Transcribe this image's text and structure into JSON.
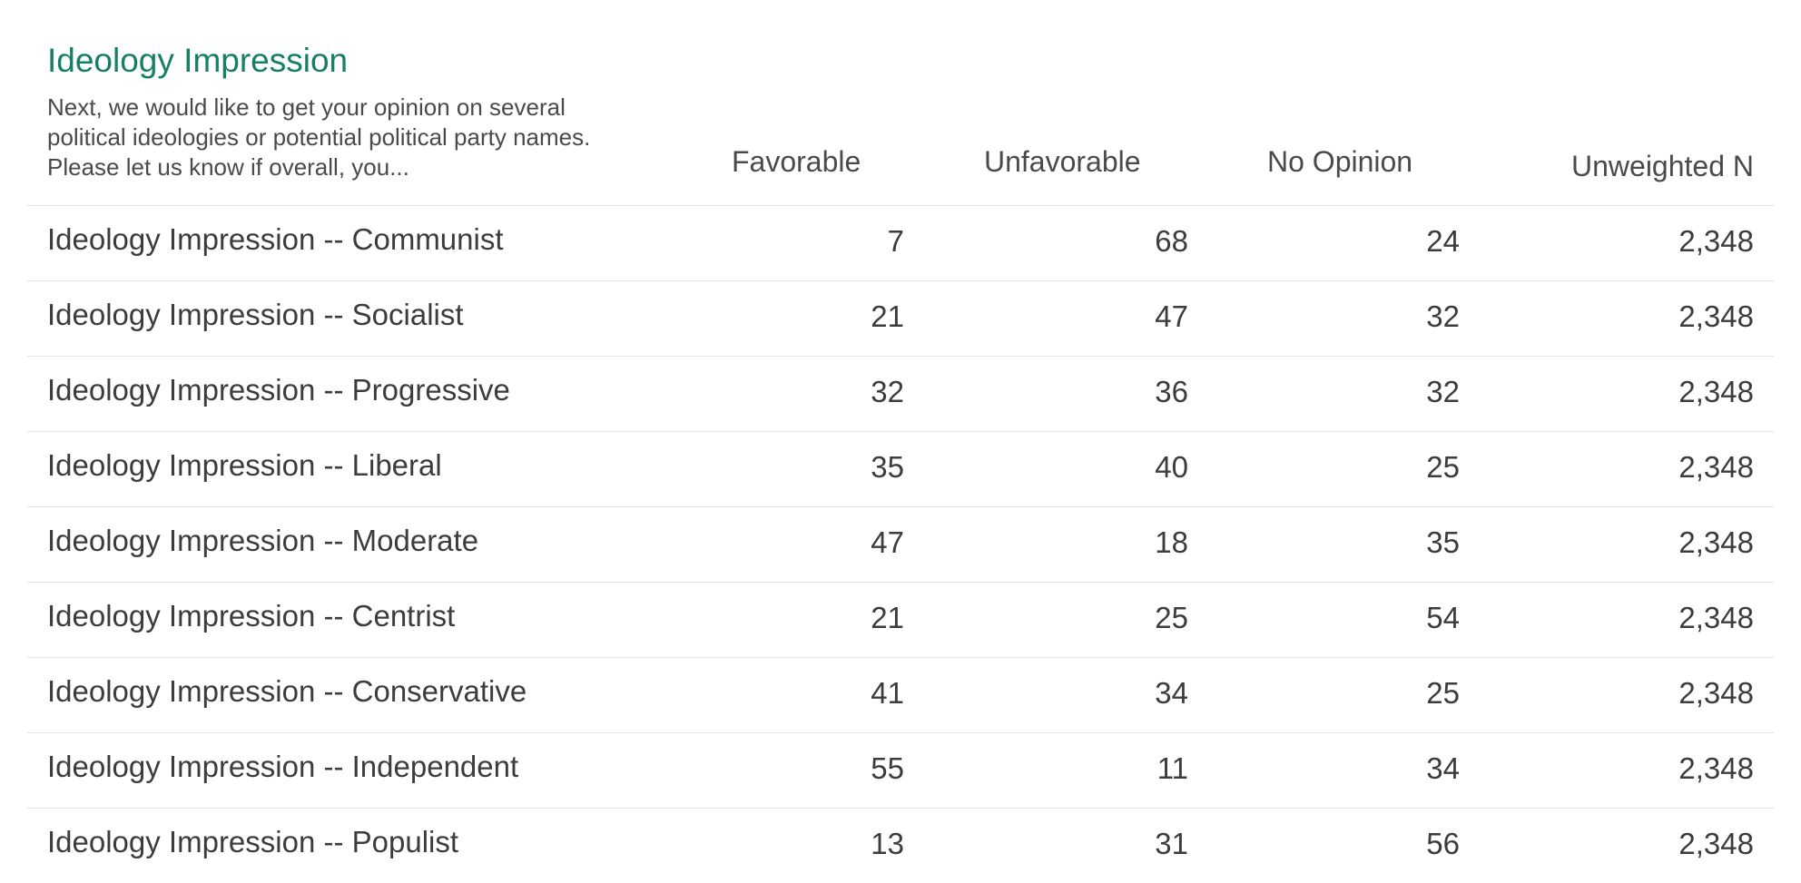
{
  "chart_data": {
    "type": "table",
    "title": "Ideology Impression",
    "subtitle": "Next, we would like to get your opinion on several political ideologies or potential political party names. Please let us know if overall, you...",
    "columns": [
      "Favorable",
      "Unfavorable",
      "No Opinion",
      "Unweighted N"
    ],
    "rows": [
      {
        "label": "Ideology Impression -- Communist",
        "favorable": "7",
        "unfavorable": "68",
        "no_opinion": "24",
        "unweighted_n": "2,348"
      },
      {
        "label": "Ideology Impression -- Socialist",
        "favorable": "21",
        "unfavorable": "47",
        "no_opinion": "32",
        "unweighted_n": "2,348"
      },
      {
        "label": "Ideology Impression -- Progressive",
        "favorable": "32",
        "unfavorable": "36",
        "no_opinion": "32",
        "unweighted_n": "2,348"
      },
      {
        "label": "Ideology Impression -- Liberal",
        "favorable": "35",
        "unfavorable": "40",
        "no_opinion": "25",
        "unweighted_n": "2,348"
      },
      {
        "label": "Ideology Impression -- Moderate",
        "favorable": "47",
        "unfavorable": "18",
        "no_opinion": "35",
        "unweighted_n": "2,348"
      },
      {
        "label": "Ideology Impression -- Centrist",
        "favorable": "21",
        "unfavorable": "25",
        "no_opinion": "54",
        "unweighted_n": "2,348"
      },
      {
        "label": "Ideology Impression -- Conservative",
        "favorable": "41",
        "unfavorable": "34",
        "no_opinion": "25",
        "unweighted_n": "2,348"
      },
      {
        "label": "Ideology Impression -- Independent",
        "favorable": "55",
        "unfavorable": "11",
        "no_opinion": "34",
        "unweighted_n": "2,348"
      },
      {
        "label": "Ideology Impression -- Populist",
        "favorable": "13",
        "unfavorable": "31",
        "no_opinion": "56",
        "unweighted_n": "2,348"
      }
    ]
  },
  "colors": {
    "title": "#168065",
    "text": "#3c3c3c",
    "divider": "#e3e3e3"
  }
}
